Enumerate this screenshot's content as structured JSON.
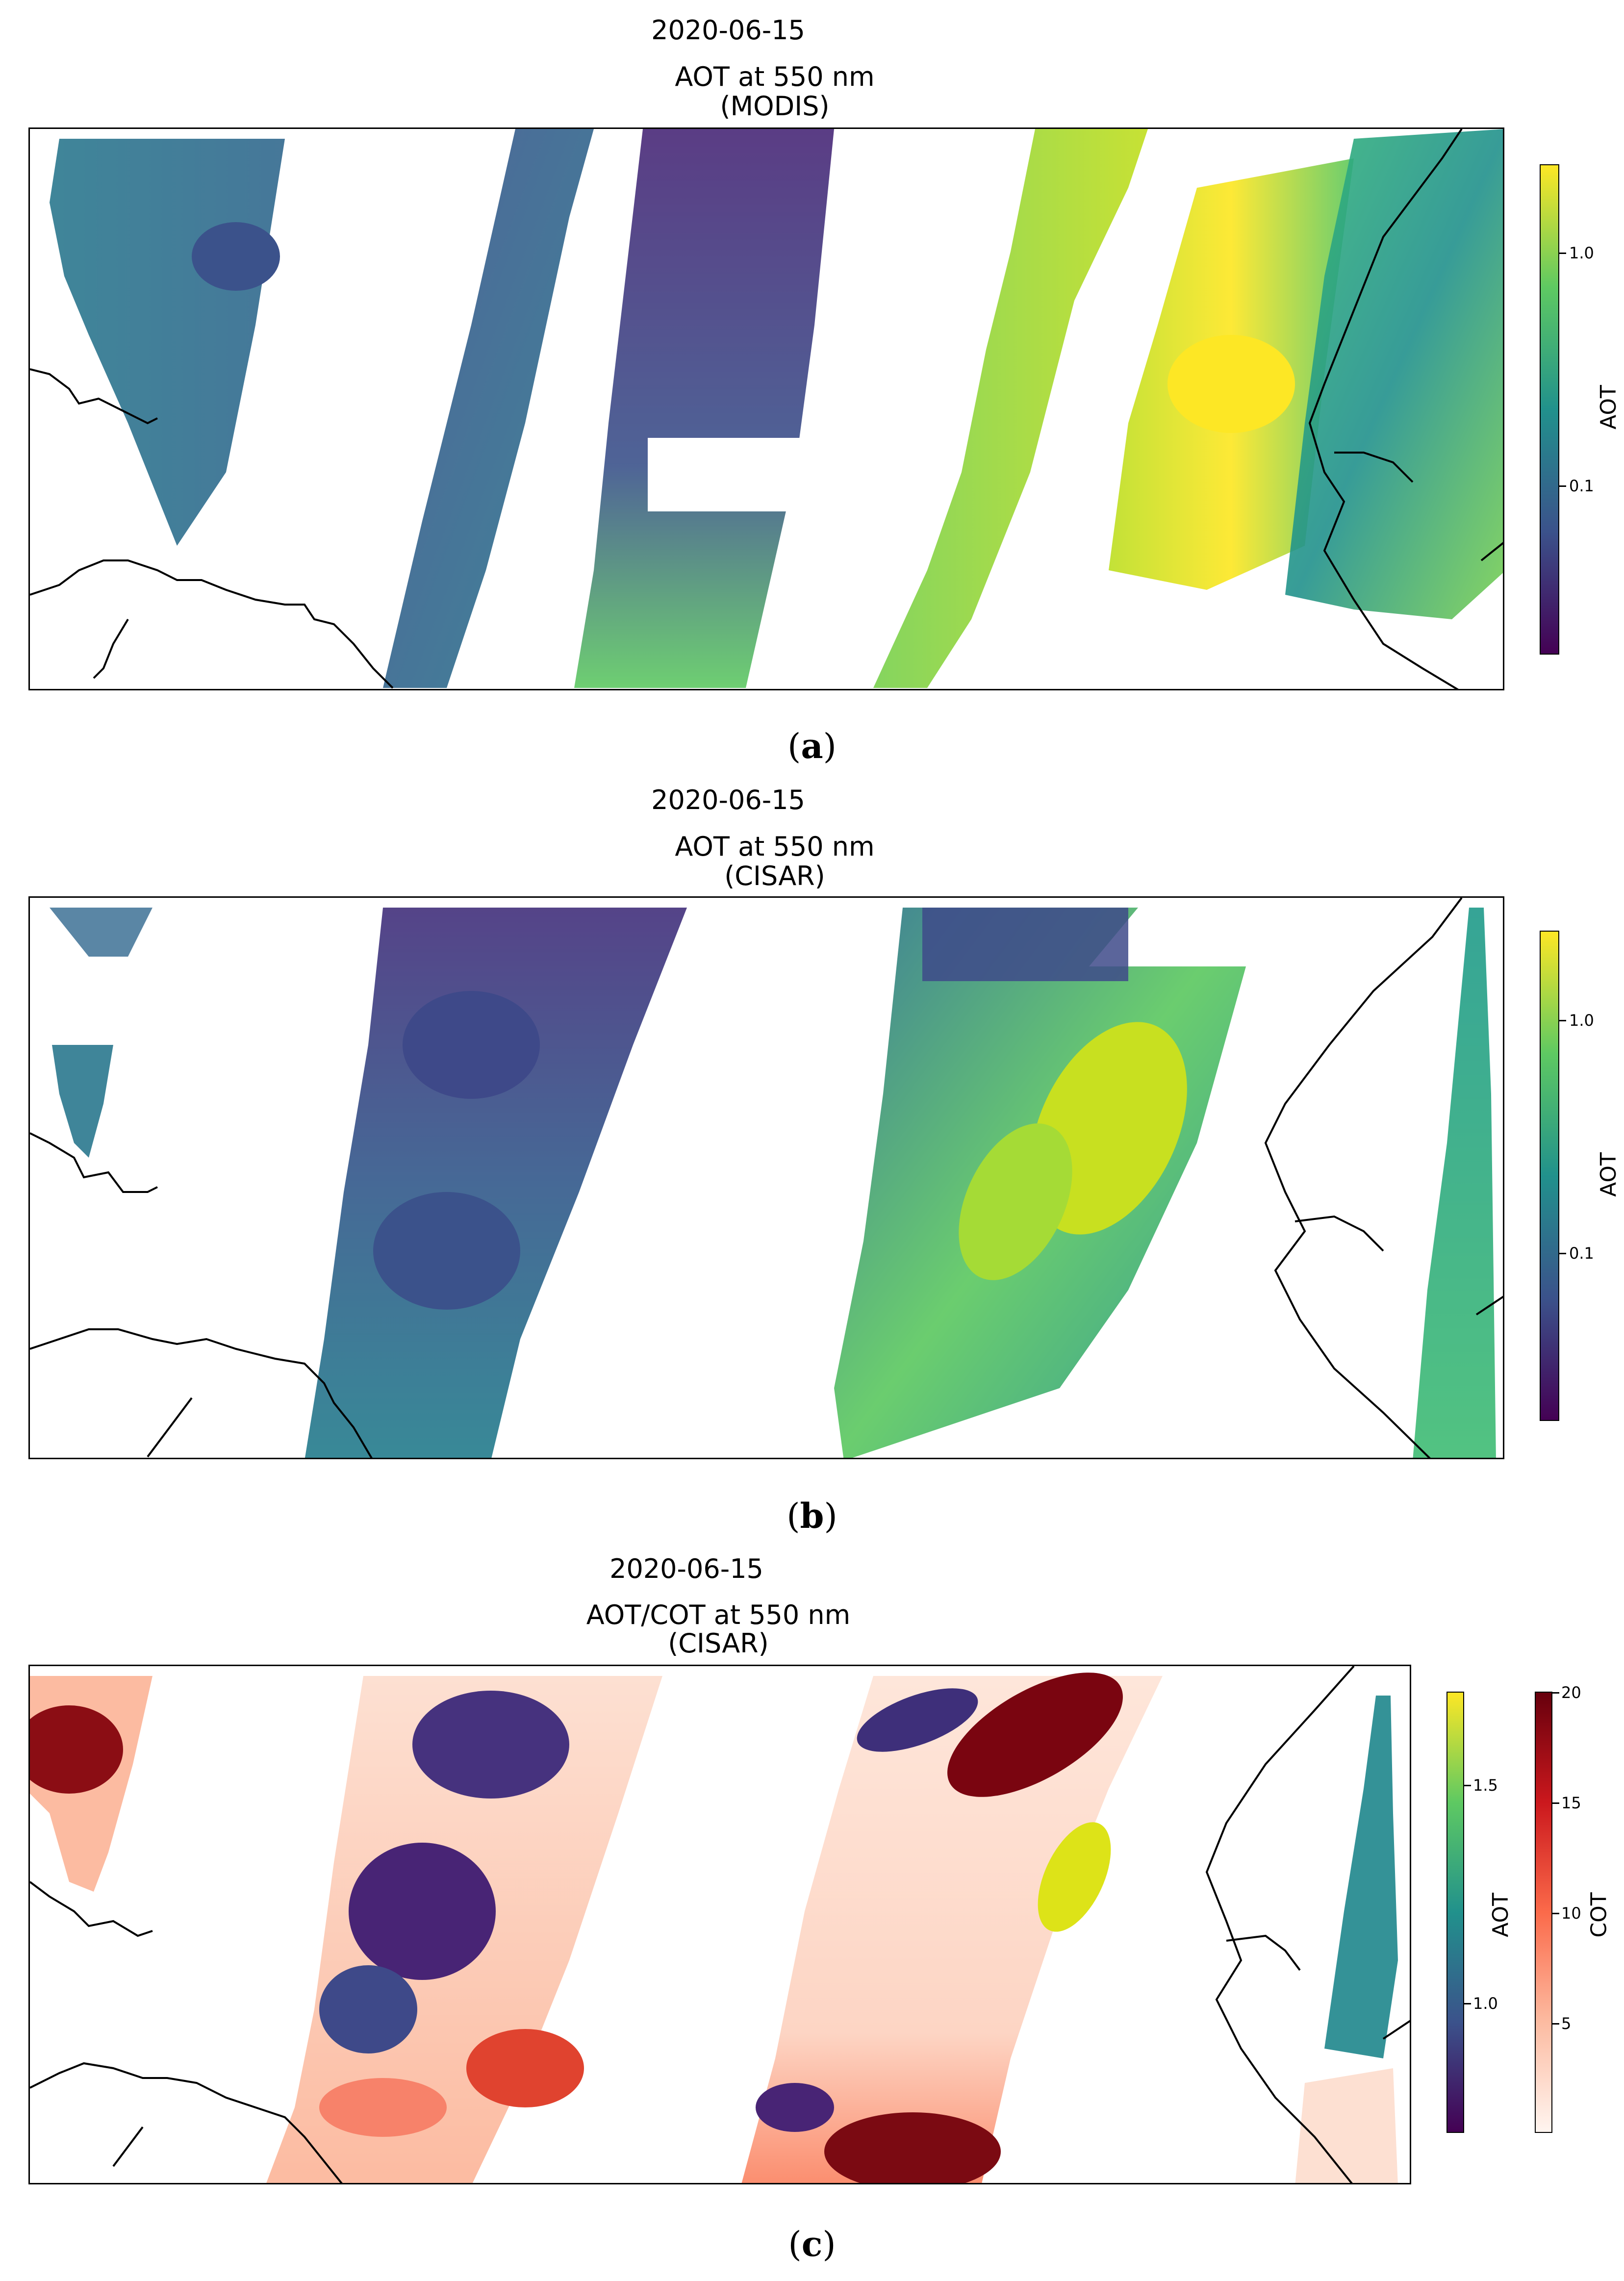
{
  "panels": [
    {
      "id": "a",
      "date": "2020-06-15",
      "title": "AOT at 550 nm",
      "subtitle": "(MODIS)",
      "caption": "a",
      "colorbars": [
        {
          "label": "AOT",
          "colormap": "viridis",
          "scale": "log",
          "ticks": [
            "1.0",
            "0.1"
          ]
        }
      ]
    },
    {
      "id": "b",
      "date": "2020-06-15",
      "title": "AOT at 550 nm",
      "subtitle": "(CISAR)",
      "caption": "b",
      "colorbars": [
        {
          "label": "AOT",
          "colormap": "viridis",
          "scale": "log",
          "ticks": [
            "1.0",
            "0.1"
          ]
        }
      ]
    },
    {
      "id": "c",
      "date": "2020-06-15",
      "title": "AOT/COT at 550 nm",
      "subtitle": "(CISAR)",
      "caption": "c",
      "colorbars": [
        {
          "label": "AOT",
          "colormap": "viridis",
          "scale": "linear",
          "ticks": [
            "1.5",
            "1.0"
          ]
        },
        {
          "label": "COT",
          "colormap": "Reds",
          "scale": "linear",
          "ticks": [
            "20",
            "15",
            "10",
            "5"
          ]
        }
      ]
    }
  ],
  "colors": {
    "viridis": [
      "#440154",
      "#3b528b",
      "#21918c",
      "#5ec962",
      "#fde725"
    ],
    "reds": [
      "#fff5f0",
      "#fcbba1",
      "#fb6a4a",
      "#cb181d",
      "#67000d"
    ],
    "coastline": "#000000"
  }
}
